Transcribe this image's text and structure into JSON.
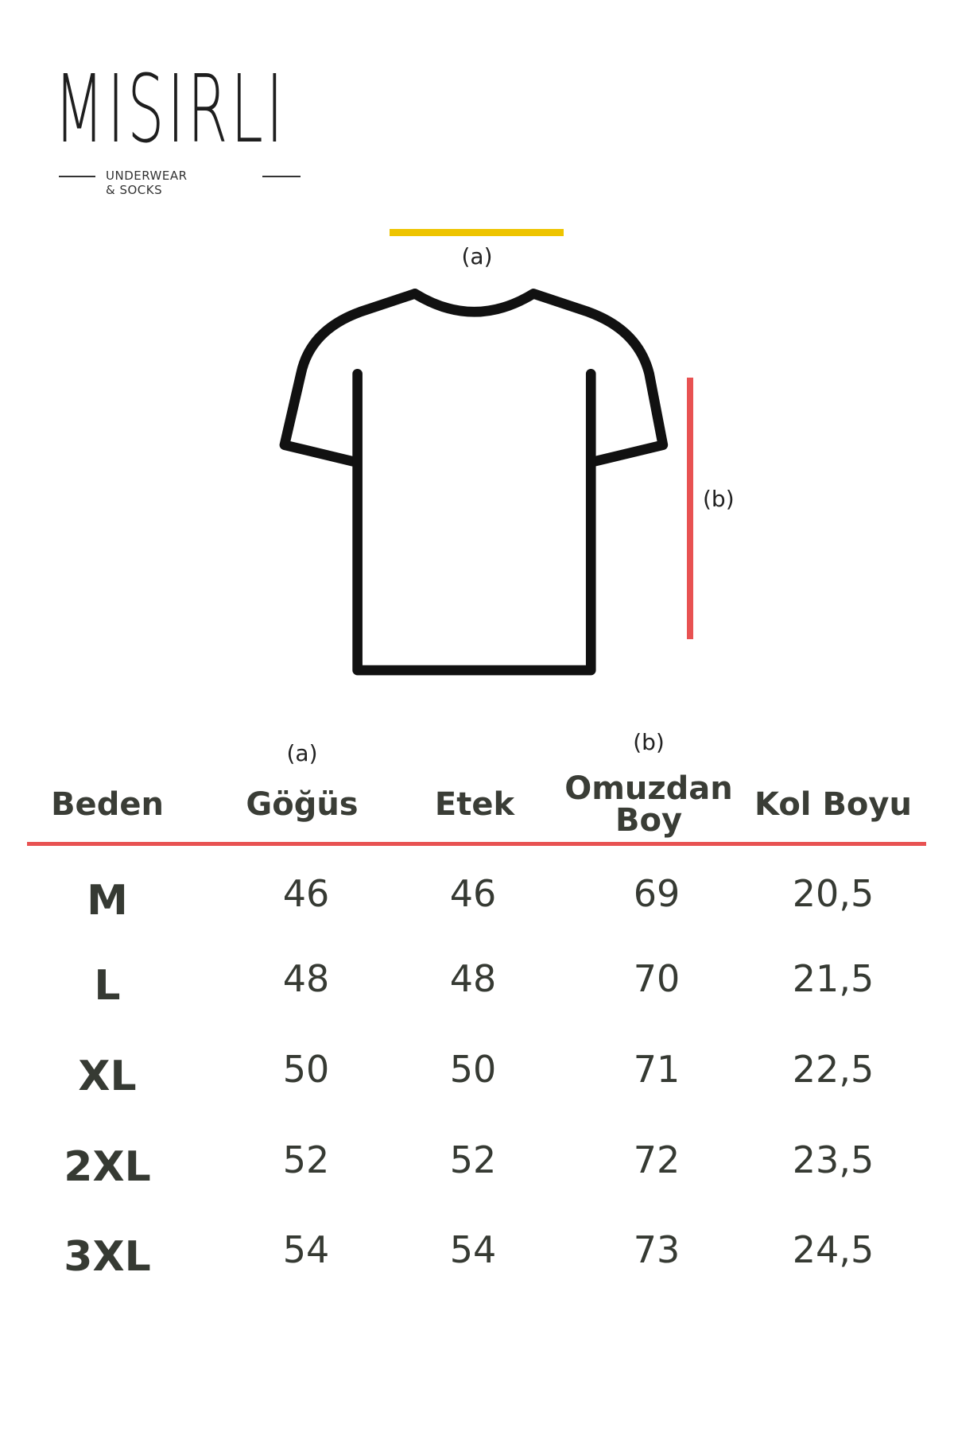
{
  "brand": {
    "name": "MISIRLI",
    "tagline": "UNDERWEAR & SOCKS"
  },
  "diagram": {
    "label_a": "(a)",
    "label_b": "(b)",
    "color_a": "#eec400",
    "color_b": "#e85252"
  },
  "table": {
    "headers": [
      {
        "marker": "",
        "label": "Beden"
      },
      {
        "marker": "(a)",
        "label": "Göğüs"
      },
      {
        "marker": "",
        "label": "Etek"
      },
      {
        "marker": "(b)",
        "label": "Omuzdan Boy",
        "line1": "Omuzdan",
        "line2": "Boy"
      },
      {
        "marker": "",
        "label": "Kol Boyu"
      }
    ],
    "rule_color": "#e85252",
    "rows": [
      [
        "M",
        "46",
        "46",
        "69",
        "20,5"
      ],
      [
        "L",
        "48",
        "48",
        "70",
        "21,5"
      ],
      [
        "XL",
        "50",
        "50",
        "71",
        "22,5"
      ],
      [
        "2XL",
        "52",
        "52",
        "72",
        "23,5"
      ],
      [
        "3XL",
        "54",
        "54",
        "73",
        "24,5"
      ]
    ]
  }
}
